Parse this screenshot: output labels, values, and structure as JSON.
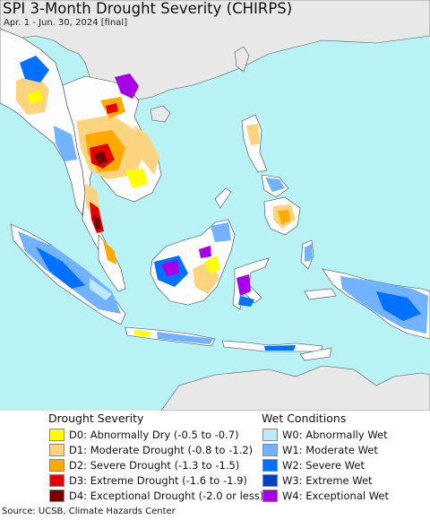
{
  "header": {
    "title": "SPI 3-Month Drought Severity (CHIRPS)",
    "subtitle": "Apr. 1 - Jun. 30, 2024 [final]"
  },
  "colors": {
    "ocean": "#b9f2f5",
    "land_normal": "#fdfdfd",
    "outside_land": "#e8e8e8",
    "border": "#444444"
  },
  "legend": {
    "drought": {
      "title": "Drought Severity",
      "items": [
        {
          "label": "D0: Abnormally Dry (-0.5 to -0.7)",
          "color": "#ffff00"
        },
        {
          "label": "D1: Moderate Drought (-0.8 to -1.2)",
          "color": "#fcd37f"
        },
        {
          "label": "D2: Severe Drought (-1.3 to -1.5)",
          "color": "#ffaa00"
        },
        {
          "label": "D3: Extreme Drought (-1.6 to -1.9)",
          "color": "#e60000"
        },
        {
          "label": "D4: Exceptional Drought (-2.0 or less)",
          "color": "#730000"
        }
      ]
    },
    "wet": {
      "title": "Wet Conditions",
      "items": [
        {
          "label": "W0: Abnormally Wet",
          "color": "#bee8ff"
        },
        {
          "label": "W1: Moderate Wet",
          "color": "#73b2ff"
        },
        {
          "label": "W2: Severe Wet",
          "color": "#0070ff"
        },
        {
          "label": "W3: Extreme Wet",
          "color": "#0040c0"
        },
        {
          "label": "W4: Exceptional Wet",
          "color": "#a800e6"
        }
      ]
    }
  },
  "footer": {
    "source": "Source: UCSB, Climate Hazards Center"
  }
}
